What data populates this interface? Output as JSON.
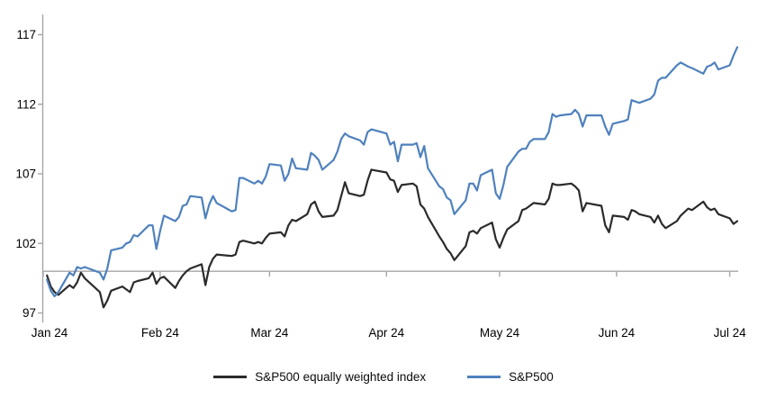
{
  "chart_data": {
    "type": "line",
    "title": "",
    "xlabel": "",
    "ylabel": "",
    "grid": false,
    "legend_position": "bottom",
    "axis_color": "#a6a6a6",
    "text_color": "#000000",
    "baseline_value": 100,
    "y_axis": {
      "ticks": [
        97,
        102,
        107,
        112,
        117
      ],
      "range": [
        96.5,
        118.5
      ]
    },
    "x_axis": {
      "ticks": [
        {
          "label": "Jan 24",
          "date": "1-1"
        },
        {
          "label": "Feb 24",
          "date": "2-1"
        },
        {
          "label": "Mar 24",
          "date": "3-1"
        },
        {
          "label": "Apr 24",
          "date": "4-1"
        },
        {
          "label": "May 24",
          "date": "5-1"
        },
        {
          "label": "Jun 24",
          "date": "6-1"
        },
        {
          "label": "Jul 24",
          "date": "7-1"
        }
      ]
    },
    "dates": [
      "1-2",
      "1-3",
      "1-4",
      "1-5",
      "1-8",
      "1-9",
      "1-10",
      "1-11",
      "1-12",
      "1-16",
      "1-17",
      "1-18",
      "1-19",
      "1-22",
      "1-23",
      "1-24",
      "1-25",
      "1-26",
      "1-29",
      "1-30",
      "1-31",
      "2-1",
      "2-2",
      "2-5",
      "2-6",
      "2-7",
      "2-8",
      "2-9",
      "2-12",
      "2-13",
      "2-14",
      "2-15",
      "2-16",
      "2-20",
      "2-21",
      "2-22",
      "2-23",
      "2-26",
      "2-27",
      "2-28",
      "2-29",
      "3-1",
      "3-4",
      "3-5",
      "3-6",
      "3-7",
      "3-8",
      "3-11",
      "3-12",
      "3-13",
      "3-14",
      "3-15",
      "3-18",
      "3-19",
      "3-20",
      "3-21",
      "3-22",
      "3-25",
      "3-26",
      "3-27",
      "3-28",
      "4-1",
      "4-2",
      "4-3",
      "4-4",
      "4-5",
      "4-8",
      "4-9",
      "4-10",
      "4-11",
      "4-12",
      "4-15",
      "4-16",
      "4-17",
      "4-18",
      "4-19",
      "4-22",
      "4-23",
      "4-24",
      "4-25",
      "4-26",
      "4-29",
      "4-30",
      "5-1",
      "5-2",
      "5-3",
      "5-6",
      "5-7",
      "5-8",
      "5-9",
      "5-10",
      "5-13",
      "5-14",
      "5-15",
      "5-16",
      "5-17",
      "5-20",
      "5-21",
      "5-22",
      "5-23",
      "5-24",
      "5-28",
      "5-29",
      "5-30",
      "5-31",
      "6-3",
      "6-4",
      "6-5",
      "6-6",
      "6-7",
      "6-10",
      "6-11",
      "6-12",
      "6-13",
      "6-14",
      "6-17",
      "6-18",
      "6-20",
      "6-21",
      "6-24",
      "6-25",
      "6-26",
      "6-27",
      "6-28",
      "7-1",
      "7-2",
      "7-3"
    ],
    "series": [
      {
        "name": "S&P500 equally weighted index",
        "color": "#2b2b2b",
        "values": [
          99.7,
          98.9,
          98.5,
          98.3,
          99.0,
          98.8,
          99.2,
          99.9,
          99.5,
          98.5,
          97.4,
          97.9,
          98.6,
          98.9,
          98.7,
          98.5,
          99.2,
          99.3,
          99.5,
          99.9,
          99.1,
          99.5,
          99.6,
          98.8,
          99.3,
          99.7,
          100.0,
          100.2,
          100.5,
          99.0,
          100.3,
          100.9,
          101.2,
          101.1,
          101.2,
          102.1,
          102.2,
          102.0,
          102.1,
          102.0,
          102.4,
          102.7,
          102.8,
          102.5,
          103.3,
          103.7,
          103.6,
          104.1,
          104.8,
          105.0,
          104.3,
          103.9,
          104.0,
          104.4,
          105.4,
          106.4,
          105.6,
          105.4,
          105.5,
          106.5,
          107.3,
          107.1,
          106.6,
          106.5,
          105.7,
          106.2,
          106.3,
          106.1,
          104.8,
          104.5,
          103.9,
          102.5,
          102.1,
          101.6,
          101.3,
          100.8,
          101.8,
          102.8,
          102.9,
          102.7,
          103.1,
          103.5,
          102.3,
          101.7,
          102.4,
          103.0,
          103.6,
          104.4,
          104.5,
          104.7,
          104.9,
          104.8,
          105.2,
          106.3,
          106.2,
          106.2,
          106.3,
          106.1,
          105.8,
          104.3,
          104.9,
          104.7,
          103.3,
          102.8,
          104.0,
          103.9,
          103.7,
          104.4,
          104.3,
          104.1,
          103.9,
          103.5,
          104.0,
          103.4,
          103.1,
          103.6,
          104.0,
          104.5,
          104.4,
          105.0,
          104.6,
          104.4,
          104.5,
          104.1,
          103.8,
          103.4,
          103.6
        ]
      },
      {
        "name": "S&P500",
        "color": "#4f81bd",
        "values": [
          99.4,
          98.6,
          98.2,
          98.5,
          99.9,
          99.7,
          100.3,
          100.2,
          100.3,
          99.9,
          99.4,
          100.2,
          101.5,
          101.7,
          102.0,
          102.1,
          102.6,
          102.5,
          103.3,
          103.3,
          101.6,
          102.9,
          104.0,
          103.6,
          103.9,
          104.7,
          104.8,
          105.4,
          105.3,
          103.8,
          104.8,
          105.4,
          104.9,
          104.3,
          104.4,
          106.7,
          106.7,
          106.3,
          106.5,
          106.3,
          106.8,
          107.7,
          107.6,
          106.5,
          107.0,
          108.1,
          107.4,
          107.3,
          108.5,
          108.3,
          108.0,
          107.3,
          108.0,
          108.6,
          109.5,
          109.9,
          109.7,
          109.4,
          109.1,
          110.0,
          110.2,
          109.9,
          109.1,
          109.3,
          107.9,
          109.1,
          109.1,
          109.2,
          108.2,
          109.0,
          107.4,
          106.1,
          105.9,
          105.3,
          105.1,
          104.1,
          105.1,
          106.3,
          106.3,
          105.8,
          106.9,
          107.3,
          105.6,
          105.2,
          106.2,
          107.5,
          108.6,
          108.8,
          108.8,
          109.3,
          109.5,
          109.5,
          110.0,
          111.3,
          111.1,
          111.2,
          111.3,
          111.6,
          111.3,
          110.4,
          111.2,
          111.2,
          110.4,
          109.8,
          110.6,
          110.8,
          110.9,
          112.3,
          112.2,
          112.1,
          112.4,
          112.7,
          113.7,
          113.9,
          113.9,
          114.8,
          115.0,
          114.7,
          114.6,
          114.2,
          114.7,
          114.8,
          115.0,
          114.5,
          114.8,
          115.5,
          116.1
        ]
      }
    ]
  }
}
